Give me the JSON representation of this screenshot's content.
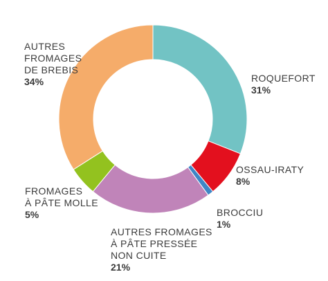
{
  "chart_data": {
    "type": "pie",
    "categories": [
      "ROQUEFORT",
      "OSSAU-IRATY",
      "BROCCIU",
      "AUTRES FROMAGES À PÂTE PRESSÉE NON CUITE",
      "FROMAGES À PÂTE MOLLE",
      "AUTRES FROMAGES DE BREBIS"
    ],
    "values": [
      31,
      8,
      1,
      21,
      5,
      34
    ],
    "colors": [
      "#72c3c4",
      "#e3101e",
      "#3f86c6",
      "#c084b9",
      "#93c21f",
      "#f5ac6a"
    ],
    "units": "%",
    "labels": [
      {
        "lines": [
          "ROQUEFORT"
        ],
        "pct": "31%"
      },
      {
        "lines": [
          "OSSAU-IRATY"
        ],
        "pct": "8%"
      },
      {
        "lines": [
          "BROCCIU"
        ],
        "pct": "1%"
      },
      {
        "lines": [
          "AUTRES FROMAGES",
          "À PÂTE PRESSÉE",
          "NON CUITE"
        ],
        "pct": "21%"
      },
      {
        "lines": [
          "FROMAGES",
          "À PÂTE MOLLE"
        ],
        "pct": "5%"
      },
      {
        "lines": [
          "AUTRES",
          "FROMAGES",
          "DE BREBIS"
        ],
        "pct": "34%"
      }
    ]
  }
}
